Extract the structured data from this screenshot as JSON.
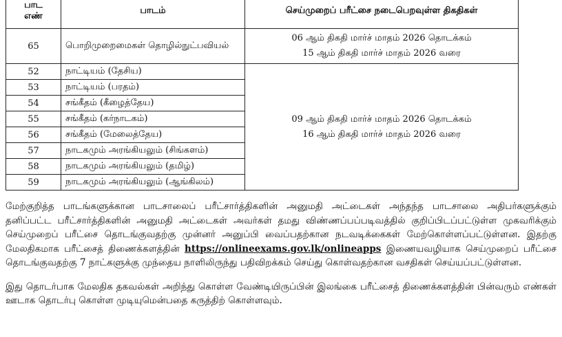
{
  "table": {
    "header": {
      "number": [
        "பாட",
        "எண்"
      ],
      "subject": "பாடம்",
      "dates": "செய்முறைப் பரீட்சை நடைபெறவுள்ள திகதிகள்"
    },
    "groups": [
      {
        "rows": [
          {
            "number": "65",
            "subject": "பொறிமுறைமைகள் தொழில்நுட்பவியல்"
          }
        ],
        "dates": [
          "06 ஆம் திகதி மார்ச் மாதம் 2026 தொடக்கம்",
          "15 ஆம் திகதி மார்ச் மாதம் 2026 வரை"
        ]
      },
      {
        "rows": [
          {
            "number": "52",
            "subject": "நாட்டியம் (தேசிய)"
          },
          {
            "number": "53",
            "subject": "நாட்டியம் (பரதம்)"
          },
          {
            "number": "54",
            "subject": "சங்கீதம் (கீழைத்தேய)"
          },
          {
            "number": "55",
            "subject": "சங்கீதம் (கர்நாடகம்)"
          },
          {
            "number": "56",
            "subject": "சங்கீதம் (மேலைத்தேய)"
          },
          {
            "number": "57",
            "subject": "நாடகமும் அரங்கியலும் (சிங்களம்)"
          },
          {
            "number": "58",
            "subject": "நாடகமும் அரங்கியலும் (தமிழ்)"
          },
          {
            "number": "59",
            "subject": "நாடகமும் அரங்கியலும் (ஆங்கிலம்)"
          }
        ],
        "dates": [
          "09 ஆம் திகதி மார்ச் மாதம் 2026 தொடக்கம்",
          "16 ஆம் திகதி மார்ச் மாதம் 2026 வரை"
        ]
      }
    ]
  },
  "paragraphs": [
    {
      "before": "மேற்குறித்த பாடங்களுக்கான பாடசாலைப் பரீட்சார்த்திகளின் அனுமதி அட்டைகள் அந்தந்த பாடசாலை அதிபர்களுக்கும் தனிப்பட்ட பரீட்சார்த்திகளின் அனுமதி அட்டைகள் அவர்கள் தமது விண்ணப்பப்படிவத்தில் குறிப்பிடப்பட்டுள்ள முகவரிக்கும் செய்முறைப் பரீட்சை தொடங்குவதற்கு முன்னர் அனுப்பி வைப்பதற்கான நடவடிக்கைகள் மேற்கொள்ளப்பட்டுள்ளன. இதற்கு மேலதிகமாக பரீட்சைத் திணைக்களத்தின்",
      "link": "https://onlineexams.gov.lk/onlineapps",
      "after": "இணையவழியாக செய்முறைப் பரீட்சை தொடங்குவதற்கு 7 நாட்களுக்கு முந்தைய நாளிலிருந்து பதிவிறக்கம் செய்து கொள்வதற்கான வசதிகள் செய்யப்பட்டுள்ளன."
    },
    {
      "before": "இது தொடர்பாக மேலதிக தகவல்கள் அறிந்து கொள்ள வேண்டியிருப்பின் இலங்கை பரீட்சைத் திணைக்களத்தின் பின்வரும் எண்கள் ஊடாக தொடர்பு கொள்ள முடியுமென்பதை கருத்திற் கொள்ளவும்."
    }
  ]
}
